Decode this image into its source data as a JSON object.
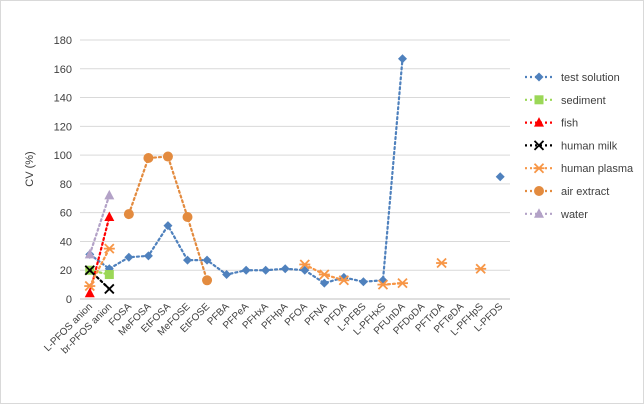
{
  "chart_data": {
    "type": "line",
    "title": "",
    "xlabel": "",
    "ylabel": "CV (%)",
    "ylim": [
      0,
      180
    ],
    "yticks": [
      0,
      20,
      40,
      60,
      80,
      100,
      120,
      140,
      160,
      180
    ],
    "grid": true,
    "legend_position": "right",
    "categories": [
      "L-PFOS anion",
      "br-PFOS anion",
      "FOSA",
      "MeFOSA",
      "EtFOSA",
      "MeFOSE",
      "EtFOSE",
      "PFBA",
      "PFPeA",
      "PFHxA",
      "PFHpA",
      "PFOA",
      "PFNA",
      "PFDA",
      "L-PFBS",
      "L-PFHxS",
      "PFUnDA",
      "PFDoDA",
      "PFTrDA",
      "PFTeDA",
      "L-PFHpS",
      "L-PFDS"
    ],
    "series": [
      {
        "name": "test solution",
        "color": "#4f81bd",
        "marker": "diamond",
        "values": [
          31,
          21,
          29,
          30,
          51,
          27,
          27,
          17,
          20,
          20,
          21,
          20,
          11,
          15,
          12,
          13,
          167,
          null,
          null,
          null,
          null,
          85
        ]
      },
      {
        "name": "sediment",
        "color": "#9bd757",
        "marker": "square",
        "values": [
          20,
          17,
          null,
          null,
          null,
          null,
          null,
          null,
          null,
          null,
          null,
          null,
          null,
          null,
          null,
          null,
          null,
          null,
          null,
          null,
          null,
          null
        ]
      },
      {
        "name": "fish",
        "color": "#ff0000",
        "marker": "triangle",
        "values": [
          4,
          57,
          null,
          null,
          null,
          null,
          null,
          null,
          null,
          null,
          null,
          null,
          null,
          null,
          null,
          null,
          null,
          null,
          null,
          null,
          null,
          null
        ]
      },
      {
        "name": "human milk",
        "color": "#000000",
        "marker": "x",
        "values": [
          20,
          7,
          null,
          null,
          null,
          null,
          null,
          null,
          null,
          null,
          null,
          null,
          null,
          null,
          null,
          null,
          null,
          null,
          null,
          null,
          null,
          null
        ]
      },
      {
        "name": "human plasma",
        "color": "#f79646",
        "marker": "star",
        "values": [
          9,
          35,
          null,
          null,
          null,
          null,
          null,
          null,
          null,
          null,
          null,
          24,
          17,
          13,
          null,
          10,
          11,
          null,
          25,
          null,
          21,
          null
        ]
      },
      {
        "name": "air extract",
        "color": "#e38b3f",
        "marker": "circle",
        "values": [
          null,
          null,
          59,
          98,
          99,
          57,
          13,
          null,
          null,
          null,
          null,
          null,
          null,
          null,
          null,
          null,
          null,
          null,
          null,
          null,
          null,
          null
        ]
      },
      {
        "name": "water",
        "color": "#b3a2c7",
        "marker": "triangle",
        "values": [
          31,
          72,
          null,
          null,
          null,
          null,
          null,
          null,
          null,
          null,
          null,
          null,
          null,
          null,
          null,
          null,
          null,
          null,
          null,
          null,
          null,
          null
        ]
      }
    ]
  }
}
